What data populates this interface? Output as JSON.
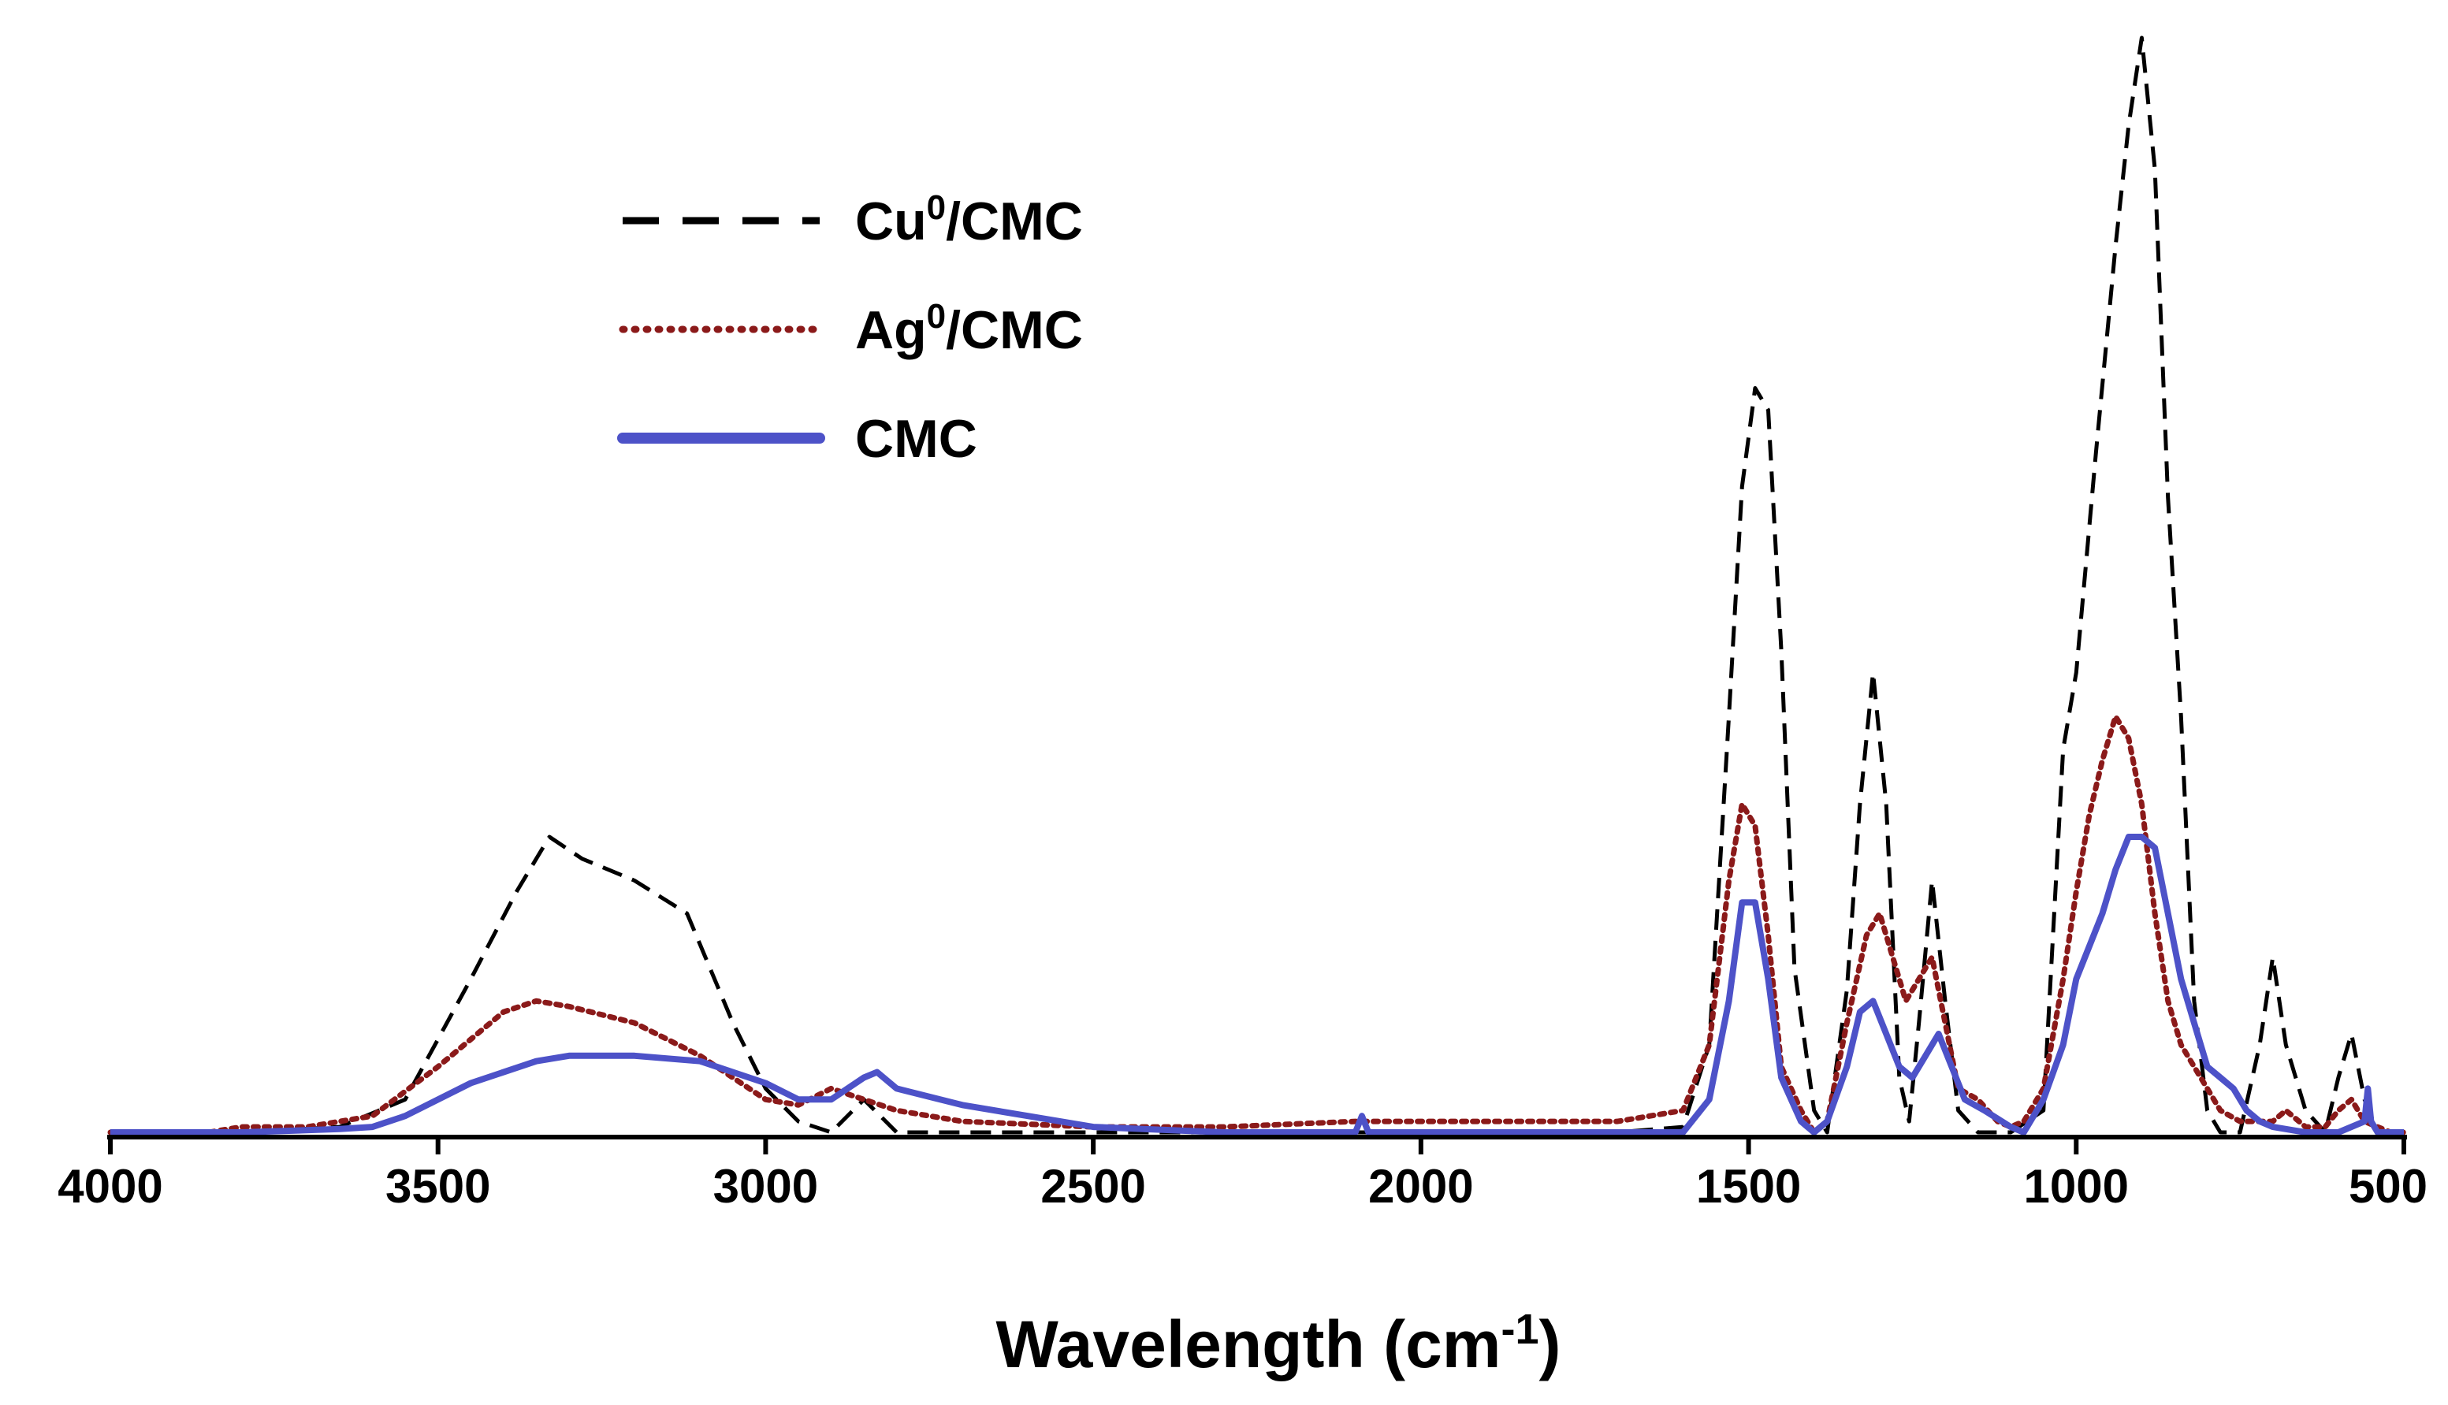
{
  "chart_data": {
    "type": "line",
    "title": "",
    "xlabel": "Wavelength (cm",
    "xlabel_superscript": "-1",
    "xlabel_suffix": ")",
    "ylabel": "",
    "xlim": [
      4000,
      500
    ],
    "ylim": [
      0,
      100
    ],
    "x_reversed": true,
    "xticks": [
      4000,
      3500,
      3000,
      2500,
      2000,
      1500,
      1000,
      500
    ],
    "xtick_labels": [
      "4000",
      "3500",
      "3000",
      "2500",
      "2000",
      "1500",
      "1000",
      "500"
    ],
    "legend_position": "top-left",
    "series": [
      {
        "name": "Cu0/CMC",
        "legend_main": "Cu",
        "legend_sup": "0",
        "legend_tail": "/CMC",
        "color": "#000000",
        "style": "dashed",
        "x": [
          4000,
          3800,
          3650,
          3550,
          3450,
          3380,
          3330,
          3280,
          3200,
          3120,
          3050,
          3000,
          2950,
          2900,
          2850,
          2800,
          2700,
          2500,
          2100,
          1700,
          1600,
          1560,
          1530,
          1510,
          1490,
          1470,
          1450,
          1430,
          1400,
          1380,
          1350,
          1330,
          1310,
          1290,
          1270,
          1255,
          1240,
          1220,
          1200,
          1180,
          1150,
          1100,
          1050,
          1020,
          1000,
          970,
          940,
          920,
          900,
          880,
          860,
          850,
          840,
          820,
          800,
          780,
          750,
          720,
          700,
          680,
          650,
          620,
          600,
          580,
          560,
          540,
          520,
          500
        ],
        "y": [
          0,
          0,
          0.5,
          3,
          14,
          22,
          27,
          25,
          23,
          20,
          10,
          4,
          1,
          0,
          3,
          0,
          0,
          0,
          0,
          0,
          0.5,
          8,
          38,
          59,
          68,
          66,
          44,
          15,
          2,
          0,
          13,
          30,
          42,
          30,
          5,
          1,
          10,
          23,
          12,
          2,
          0,
          0,
          2,
          35,
          42,
          62,
          81,
          92,
          100,
          88,
          58,
          48,
          38,
          12,
          2,
          0,
          0,
          8,
          16,
          8,
          2,
          0,
          5,
          9,
          3,
          0,
          0,
          0
        ]
      },
      {
        "name": "Ag0/CMC",
        "legend_main": "Ag",
        "legend_sup": "0",
        "legend_tail": "/CMC",
        "color": "#8b1a1a",
        "style": "dotted",
        "x": [
          4000,
          3850,
          3800,
          3700,
          3600,
          3500,
          3400,
          3350,
          3300,
          3200,
          3100,
          3000,
          2950,
          2900,
          2850,
          2800,
          2700,
          2500,
          2300,
          2100,
          1900,
          1700,
          1600,
          1560,
          1530,
          1510,
          1490,
          1470,
          1450,
          1420,
          1400,
          1380,
          1350,
          1320,
          1300,
          1280,
          1260,
          1240,
          1220,
          1200,
          1180,
          1150,
          1120,
          1100,
          1080,
          1050,
          1020,
          1000,
          980,
          960,
          940,
          920,
          900,
          880,
          860,
          840,
          820,
          800,
          780,
          750,
          700,
          680,
          650,
          620,
          600,
          580,
          560,
          540,
          520,
          500
        ],
        "y": [
          0,
          0,
          0.5,
          0.5,
          1.5,
          6,
          11,
          12,
          11.5,
          10,
          7,
          3,
          2.5,
          4,
          3,
          2,
          1,
          0.5,
          0.5,
          1,
          1,
          1,
          2,
          8,
          23,
          30,
          28,
          18,
          6,
          2,
          0,
          1,
          10,
          18,
          20,
          16,
          12,
          14,
          16,
          10,
          4,
          3,
          1,
          0.5,
          1,
          4,
          14,
          22,
          29,
          34,
          38,
          36,
          30,
          20,
          12,
          8,
          6,
          4,
          2,
          1,
          1,
          2,
          0.5,
          0.5,
          2,
          3,
          1,
          0.5,
          0,
          0
        ]
      },
      {
        "name": "CMC",
        "legend_main": "CMC",
        "legend_sup": "",
        "legend_tail": "",
        "color": "#4d52c8",
        "style": "solid",
        "x": [
          4000,
          3800,
          3650,
          3600,
          3550,
          3450,
          3350,
          3300,
          3200,
          3100,
          3000,
          2950,
          2900,
          2850,
          2830,
          2800,
          2700,
          2600,
          2500,
          2300,
          2100,
          2090,
          2080,
          2060,
          1900,
          1700,
          1600,
          1560,
          1530,
          1510,
          1490,
          1470,
          1450,
          1420,
          1400,
          1380,
          1350,
          1330,
          1310,
          1290,
          1270,
          1250,
          1230,
          1210,
          1190,
          1170,
          1140,
          1100,
          1080,
          1050,
          1020,
          1000,
          980,
          960,
          940,
          920,
          900,
          880,
          860,
          840,
          820,
          800,
          780,
          760,
          740,
          720,
          700,
          650,
          600,
          560,
          555,
          550,
          540,
          500
        ],
        "y": [
          0,
          0,
          0.3,
          0.5,
          1.5,
          4.5,
          6.5,
          7,
          7,
          6.5,
          4.5,
          3,
          3,
          5,
          5.5,
          4,
          2.5,
          1.5,
          0.5,
          0,
          0,
          1.5,
          0,
          0,
          0,
          0,
          0,
          3,
          12,
          21,
          21,
          14,
          5,
          1,
          0,
          1,
          6,
          11,
          12,
          9,
          6,
          5,
          7,
          9,
          6,
          3,
          2,
          0.5,
          0,
          3,
          8,
          14,
          17,
          20,
          24,
          27,
          27,
          26,
          20,
          14,
          10,
          6,
          5,
          4,
          2,
          1,
          0.5,
          0,
          0,
          1,
          4,
          1,
          0,
          0
        ]
      }
    ]
  }
}
